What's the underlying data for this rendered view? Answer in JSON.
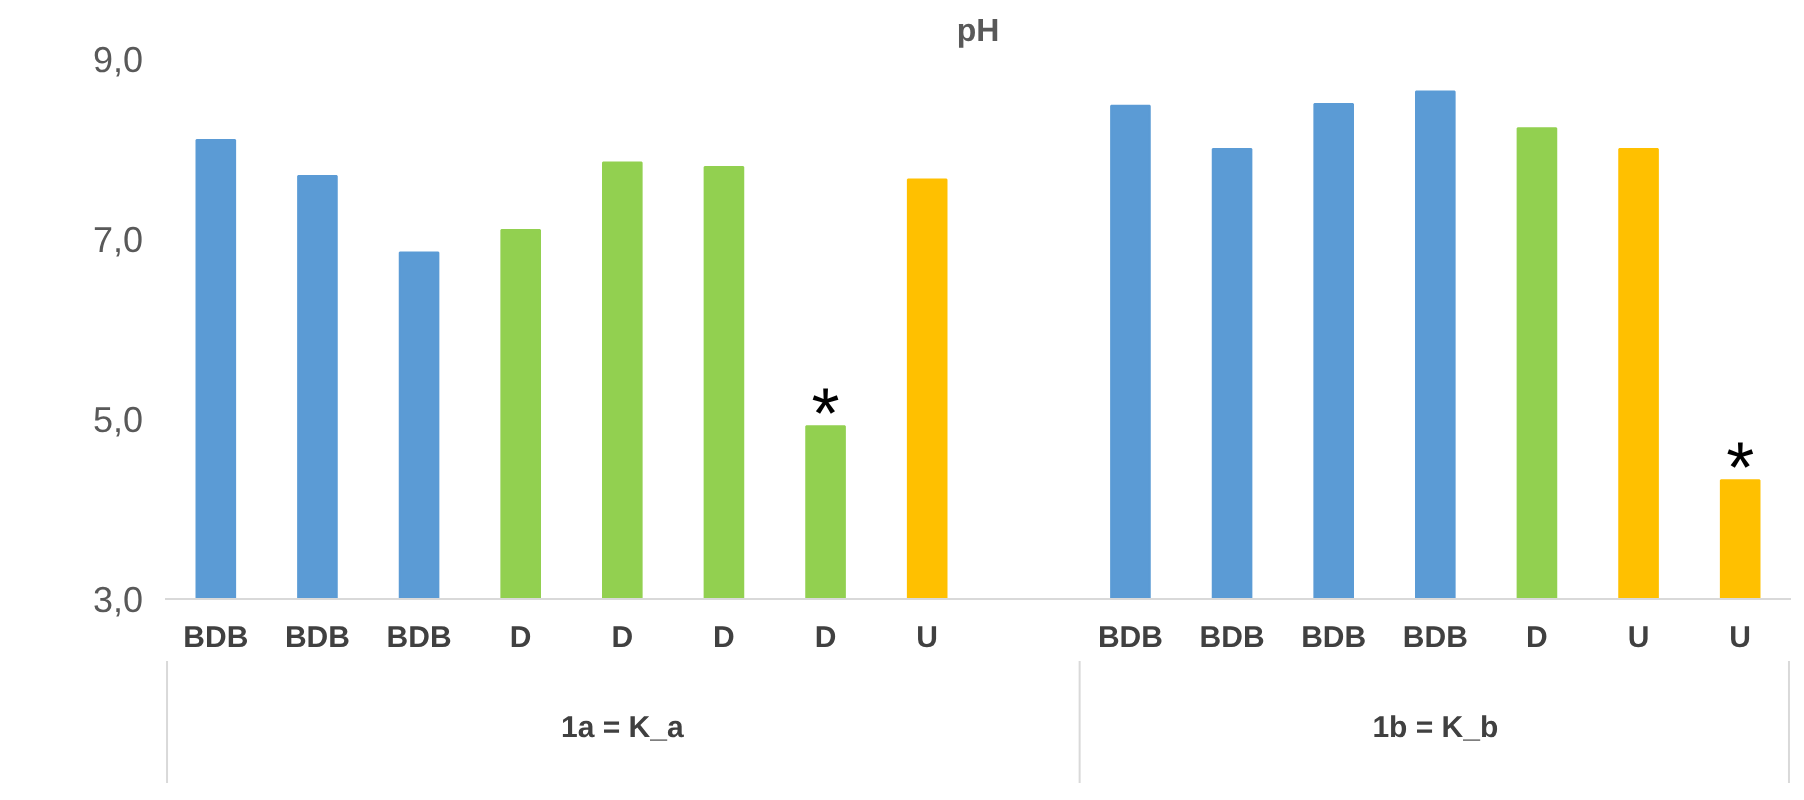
{
  "chart_data": {
    "type": "bar",
    "title": "pH",
    "categories": [
      "BDB",
      "BDB",
      "BDB",
      "D",
      "D",
      "D",
      "D",
      "U",
      null,
      "BDB",
      "BDB",
      "BDB",
      "BDB",
      "D",
      "U",
      "U"
    ],
    "series": [
      {
        "values": [
          8.1,
          7.7,
          6.85,
          7.1,
          7.85,
          7.8,
          4.92,
          7.66,
          null,
          8.48,
          8.0,
          8.5,
          8.64,
          8.23,
          8.0,
          4.32
        ],
        "colors": [
          "#5b9bd5",
          "#5b9bd5",
          "#5b9bd5",
          "#92d050",
          "#92d050",
          "#92d050",
          "#92d050",
          "#ffc000",
          null,
          "#5b9bd5",
          "#5b9bd5",
          "#5b9bd5",
          "#5b9bd5",
          "#92d050",
          "#ffc000",
          "#ffc000"
        ]
      }
    ],
    "ylim": [
      3,
      9
    ],
    "yticks": [
      {
        "value": 3,
        "label": "3,0"
      },
      {
        "value": 5,
        "label": "5,0"
      },
      {
        "value": 7,
        "label": "7,0"
      },
      {
        "value": 9,
        "label": "9,0"
      }
    ],
    "grid": false,
    "annotations": [
      "1a = K_a",
      "1b = K_b",
      "*",
      "*"
    ]
  }
}
